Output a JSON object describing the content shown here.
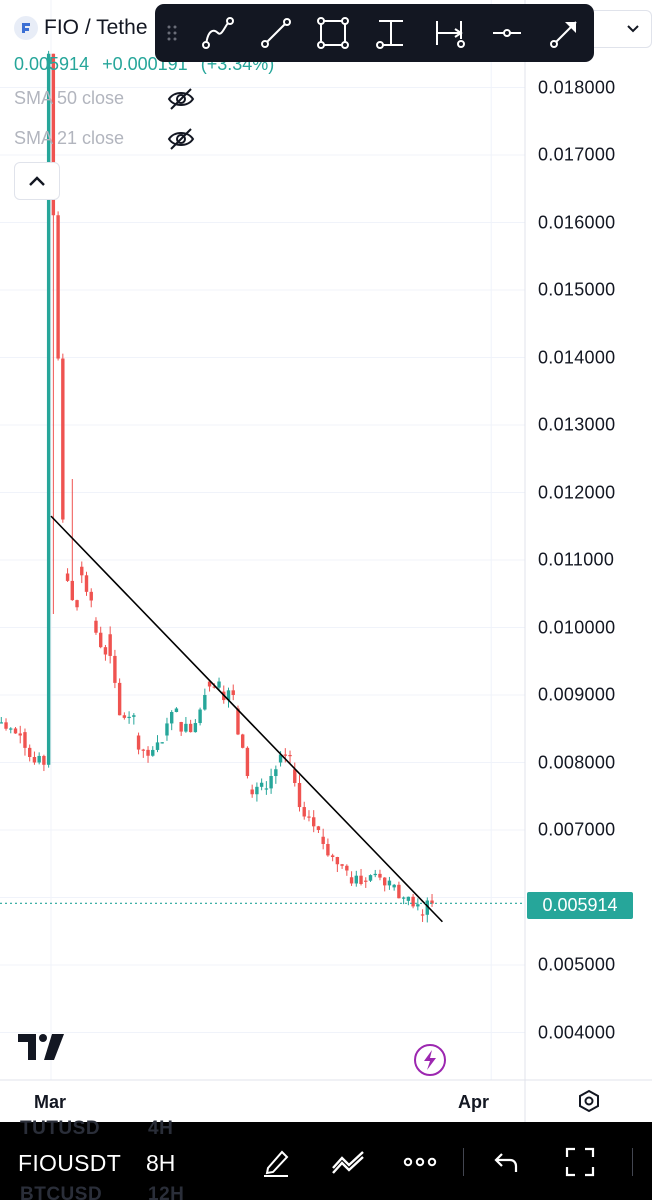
{
  "symbol": {
    "title": "FIO / Tethe",
    "last": "0.005914",
    "change": "+0.000191",
    "change_pct": "(+3.34%)"
  },
  "indicators": [
    {
      "label": "SMA 50 close",
      "icon": "eye-off-icon"
    },
    {
      "label": "SMA 21 close",
      "icon": "eye-off-icon"
    }
  ],
  "drawing_toolbar": [
    "path-tool-icon",
    "trend-line-icon",
    "rectangle-icon",
    "price-range-icon",
    "date-range-icon",
    "horizontal-ray-icon",
    "arrow-tool-icon"
  ],
  "price_axis": {
    "ticks": [
      "0.018000",
      "0.017000",
      "0.016000",
      "0.015000",
      "0.014000",
      "0.013000",
      "0.012000",
      "0.011000",
      "0.010000",
      "0.009000",
      "0.008000",
      "0.007000",
      "0.005000",
      "0.004000"
    ],
    "last_price_label": "0.005914"
  },
  "time_axis": {
    "labels": [
      "Mar",
      "Apr"
    ]
  },
  "bottom_bar": {
    "symbol": "FIOUSDT",
    "interval": "8H",
    "ghost_above": [
      "TUTUSD",
      "4H"
    ],
    "ghost_below": [
      "BTCUSD",
      "12H"
    ]
  },
  "colors": {
    "up": "#26a69a",
    "down": "#ef5350",
    "trendline": "#000000",
    "accent_bolt": "#9c27b0"
  },
  "chart_data": {
    "type": "candlestick",
    "interval": "8H",
    "y_range": [
      0.0036,
      0.0185
    ],
    "x_range": [
      "2024-02-25",
      "2024-04-03"
    ],
    "last_price": 0.005914,
    "candles": [
      {
        "t": "2024-02-25",
        "o": 0.00855,
        "c": 0.00865
      },
      {
        "t": "2024-02-26",
        "o": 0.0086,
        "c": 0.0085
      },
      {
        "t": "2024-02-27",
        "o": 0.0085,
        "c": 0.0084
      },
      {
        "t": "2024-02-28",
        "o": 0.00845,
        "c": 0.008
      },
      {
        "t": "2024-02-29",
        "o": 0.008,
        "c": 0.0185
      },
      {
        "t": "2024-03-01",
        "o": 0.0185,
        "c": 0.0116
      },
      {
        "t": "2024-03-02",
        "o": 0.0108,
        "c": 0.0103
      },
      {
        "t": "2024-03-03",
        "o": 0.0109,
        "c": 0.0104
      },
      {
        "t": "2024-03-04",
        "o": 0.0101,
        "c": 0.0096
      },
      {
        "t": "2024-03-05",
        "o": 0.0099,
        "c": 0.0087
      },
      {
        "t": "2024-03-06",
        "o": 0.0087,
        "c": 0.0087
      },
      {
        "t": "2024-03-07",
        "o": 0.0084,
        "c": 0.0081
      },
      {
        "t": "2024-03-08",
        "o": 0.0081,
        "c": 0.0083
      },
      {
        "t": "2024-03-09",
        "o": 0.0084,
        "c": 0.0088
      },
      {
        "t": "2024-03-10",
        "o": 0.0086,
        "c": 0.00845
      },
      {
        "t": "2024-03-11",
        "o": 0.00845,
        "c": 0.009
      },
      {
        "t": "2024-03-12",
        "o": 0.0092,
        "c": 0.0092
      },
      {
        "t": "2024-03-13",
        "o": 0.00905,
        "c": 0.009
      },
      {
        "t": "2024-03-14",
        "o": 0.0088,
        "c": 0.0078
      },
      {
        "t": "2024-03-15",
        "o": 0.0076,
        "c": 0.0077
      },
      {
        "t": "2024-03-16",
        "o": 0.0076,
        "c": 0.0079
      },
      {
        "t": "2024-03-17",
        "o": 0.008,
        "c": 0.0081
      },
      {
        "t": "2024-03-18",
        "o": 0.0079,
        "c": 0.0072
      },
      {
        "t": "2024-03-19",
        "o": 0.0072,
        "c": 0.007
      },
      {
        "t": "2024-03-20",
        "o": 0.0069,
        "c": 0.0066
      },
      {
        "t": "2024-03-21",
        "o": 0.0066,
        "c": 0.0064
      },
      {
        "t": "2024-03-22",
        "o": 0.0063,
        "c": 0.0062
      },
      {
        "t": "2024-03-23",
        "o": 0.00625,
        "c": 0.00635
      },
      {
        "t": "2024-03-24",
        "o": 0.00635,
        "c": 0.00625
      },
      {
        "t": "2024-03-25",
        "o": 0.00615,
        "c": 0.006
      },
      {
        "t": "2024-03-26",
        "o": 0.00595,
        "c": 0.0059
      },
      {
        "t": "2024-03-27",
        "o": 0.00575,
        "c": 0.00591
      }
    ],
    "drawings": [
      {
        "type": "trend-line",
        "from": {
          "t": "2024-03-01",
          "price": 0.01165
        },
        "to": {
          "t": "2024-03-28",
          "price": 0.0057
        }
      }
    ]
  }
}
